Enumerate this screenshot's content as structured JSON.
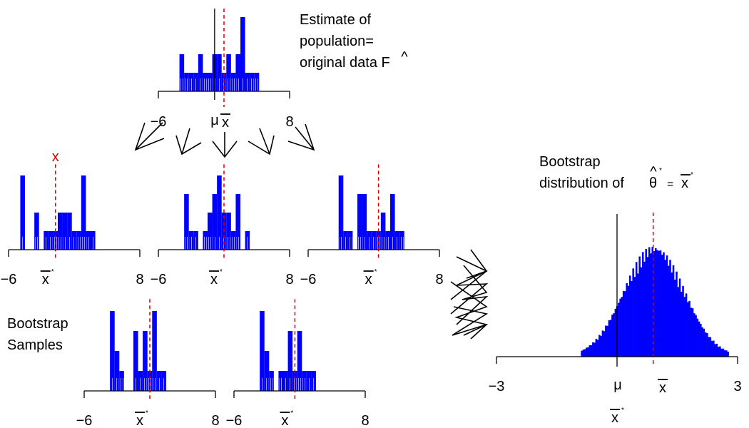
{
  "colors": {
    "bar": "#0000ff",
    "bar_hatch": "#9a9aff",
    "mean_line": "#d40000",
    "axis": "#000000",
    "marker": "#d40000"
  },
  "population": {
    "title_lines": [
      "Estimate of",
      "population=",
      "original data F"
    ],
    "hat_symbol": "^",
    "axis_min_label": "−6",
    "axis_max_label": "8",
    "mu_label": "μ",
    "xbar_label": "x",
    "xmin": -6,
    "xmax": 8,
    "mu": 0,
    "mean": 1,
    "bins": [
      {
        "x": -3.5,
        "h": 2
      },
      {
        "x": -3.0,
        "h": 1
      },
      {
        "x": -2.5,
        "h": 1
      },
      {
        "x": -2.0,
        "h": 1
      },
      {
        "x": -1.5,
        "h": 2
      },
      {
        "x": -1.0,
        "h": 1
      },
      {
        "x": -0.5,
        "h": 1
      },
      {
        "x": 0.0,
        "h": 2
      },
      {
        "x": 0.5,
        "h": 2
      },
      {
        "x": 1.0,
        "h": 1
      },
      {
        "x": 1.5,
        "h": 2
      },
      {
        "x": 2.0,
        "h": 1
      },
      {
        "x": 2.5,
        "h": 2
      },
      {
        "x": 3.0,
        "h": 4
      },
      {
        "x": 3.5,
        "h": 1
      },
      {
        "x": 4.0,
        "h": 1
      },
      {
        "x": 4.5,
        "h": 1
      }
    ]
  },
  "samples": [
    {
      "axis_min_label": "−6",
      "axis_max_label": "8",
      "xbar_label": "x",
      "star": "*",
      "marker": "x",
      "xmin": -6,
      "xmax": 8,
      "mean": -1,
      "bins": [
        {
          "x": -4.5,
          "h": 4
        },
        {
          "x": -3.0,
          "h": 2
        },
        {
          "x": -2.0,
          "h": 1
        },
        {
          "x": -1.5,
          "h": 1
        },
        {
          "x": -1.0,
          "h": 1
        },
        {
          "x": -0.5,
          "h": 2
        },
        {
          "x": 0.0,
          "h": 2
        },
        {
          "x": 0.5,
          "h": 2
        },
        {
          "x": 1.0,
          "h": 1
        },
        {
          "x": 1.5,
          "h": 1
        },
        {
          "x": 2.0,
          "h": 4
        },
        {
          "x": 2.5,
          "h": 1
        },
        {
          "x": 3.0,
          "h": 1
        }
      ]
    },
    {
      "axis_min_label": "−6",
      "axis_max_label": "8",
      "xbar_label": "x",
      "star": "*",
      "marker": "",
      "xmin": -6,
      "xmax": 8,
      "mean": 1,
      "bins": [
        {
          "x": -3.0,
          "h": 3
        },
        {
          "x": -2.5,
          "h": 1
        },
        {
          "x": -2.0,
          "h": 1
        },
        {
          "x": -1.0,
          "h": 1
        },
        {
          "x": -0.5,
          "h": 2
        },
        {
          "x": 0.0,
          "h": 3
        },
        {
          "x": 0.5,
          "h": 4
        },
        {
          "x": 1.0,
          "h": 2
        },
        {
          "x": 1.5,
          "h": 2
        },
        {
          "x": 2.0,
          "h": 1
        },
        {
          "x": 2.5,
          "h": 3
        },
        {
          "x": 3.5,
          "h": 1
        }
      ]
    },
    {
      "axis_min_label": "−6",
      "axis_max_label": "8",
      "xbar_label": "x",
      "star": "*",
      "marker": "",
      "xmin": -6,
      "xmax": 8,
      "mean": 1.5,
      "bins": [
        {
          "x": -2.5,
          "h": 4
        },
        {
          "x": -2.0,
          "h": 1
        },
        {
          "x": -1.5,
          "h": 1
        },
        {
          "x": -0.5,
          "h": 3
        },
        {
          "x": 0.0,
          "h": 3
        },
        {
          "x": 0.5,
          "h": 1
        },
        {
          "x": 1.0,
          "h": 1
        },
        {
          "x": 1.5,
          "h": 1
        },
        {
          "x": 2.0,
          "h": 2
        },
        {
          "x": 2.5,
          "h": 1
        },
        {
          "x": 3.0,
          "h": 3
        },
        {
          "x": 3.5,
          "h": 1
        },
        {
          "x": 4.0,
          "h": 1
        }
      ]
    },
    {
      "axis_min_label": "−6",
      "axis_max_label": "8",
      "xbar_label": "x",
      "star": "*",
      "marker": "",
      "xmin": -6,
      "xmax": 8,
      "mean": 1,
      "bins": [
        {
          "x": -3.0,
          "h": 4
        },
        {
          "x": -2.5,
          "h": 2
        },
        {
          "x": -2.0,
          "h": 1
        },
        {
          "x": -0.5,
          "h": 3
        },
        {
          "x": 0.0,
          "h": 1
        },
        {
          "x": 0.5,
          "h": 3
        },
        {
          "x": 1.0,
          "h": 1
        },
        {
          "x": 1.5,
          "h": 4
        },
        {
          "x": 2.0,
          "h": 1
        },
        {
          "x": 2.5,
          "h": 1
        }
      ]
    },
    {
      "axis_min_label": "−6",
      "axis_max_label": "8",
      "xbar_label": "x",
      "star": "*",
      "marker": "",
      "xmin": -6,
      "xmax": 8,
      "mean": 0.5,
      "bins": [
        {
          "x": -3.0,
          "h": 4
        },
        {
          "x": -2.5,
          "h": 2
        },
        {
          "x": -2.0,
          "h": 1
        },
        {
          "x": -1.0,
          "h": 1
        },
        {
          "x": -0.5,
          "h": 1
        },
        {
          "x": 0.0,
          "h": 3
        },
        {
          "x": 0.5,
          "h": 1
        },
        {
          "x": 1.0,
          "h": 3
        },
        {
          "x": 1.5,
          "h": 1
        },
        {
          "x": 2.0,
          "h": 1
        },
        {
          "x": 2.5,
          "h": 1
        }
      ]
    }
  ],
  "samples_label_lines": [
    "Bootstrap",
    "Samples"
  ],
  "bootstrap": {
    "title_line1": "Bootstrap",
    "title_line2_prefix": "distribution of ",
    "theta_symbol": "θ",
    "hat_symbol": "^",
    "star": "*",
    "equals": "=",
    "xbar_symbol": "x",
    "axis_min_label": "−3",
    "axis_max_label": "3",
    "mu_label": "μ",
    "xbar_tick_label": "x",
    "xlabel": "x",
    "xmin": -3,
    "xmax": 3,
    "mu": 0,
    "mean": 0.9,
    "sd": 0.75,
    "peak_height": 1,
    "bin_width": 0.04
  }
}
